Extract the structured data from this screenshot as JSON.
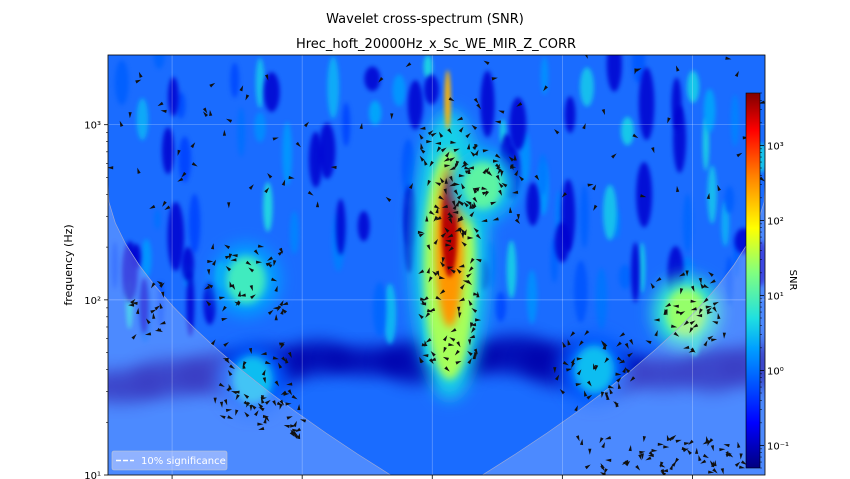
{
  "figure": {
    "suptitle": "Wavelet cross-spectrum (SNR)",
    "title": "Hrec_hoft_20000Hz_x_Sc_WE_MIR_Z_CORR"
  },
  "chart_data": {
    "type": "heatmap",
    "title": "Hrec_hoft_20000Hz_x_Sc_WE_MIR_Z_CORR",
    "suptitle": "Wavelet cross-spectrum (SNR)",
    "xlabel": "",
    "ylabel": "frequency (Hz)",
    "yscale": "log",
    "ylim": [
      10,
      2500
    ],
    "y_ticks": [
      {
        "value": 10,
        "label": "10¹"
      },
      {
        "value": 100,
        "label": "10²"
      },
      {
        "value": 1000,
        "label": "10³"
      }
    ],
    "x_ticks_count": 5,
    "x_tick_labels_visible": false,
    "grid": true,
    "colormap": "jet",
    "colorbar": {
      "label": "SNR",
      "scale": "log",
      "range": [
        0.05,
        5000
      ],
      "ticks": [
        {
          "value": 0.1,
          "label": "10⁻¹"
        },
        {
          "value": 1,
          "label": "10⁰"
        },
        {
          "value": 10,
          "label": "10¹"
        },
        {
          "value": 100,
          "label": "10²"
        },
        {
          "value": 1000,
          "label": "10³"
        }
      ]
    },
    "legend": {
      "placement": "lower-left",
      "entries": [
        "10% significance"
      ]
    },
    "features": [
      {
        "name": "main-peak",
        "x_frac": 0.52,
        "freq_center": 260,
        "freq_low": 40,
        "freq_high": 1800,
        "peak_snr": 3000
      },
      {
        "name": "secondary-blob",
        "x_frac": 0.57,
        "freq_center": 450,
        "peak_snr": 12
      },
      {
        "name": "right-lf-blob",
        "x_frac": 0.88,
        "freq_center": 85,
        "peak_snr": 25
      },
      {
        "name": "left-hf-streak",
        "x_frac": 0.21,
        "freq_center": 130,
        "peak_snr": 8
      },
      {
        "name": "left-lf-blob",
        "x_frac": 0.22,
        "freq_center": 35,
        "peak_snr": 3
      },
      {
        "name": "mid-lf-blob",
        "x_frac": 0.74,
        "freq_center": 40,
        "peak_snr": 3
      }
    ],
    "arrows_description": "phase arrows drawn where cross-spectrum is significant"
  }
}
